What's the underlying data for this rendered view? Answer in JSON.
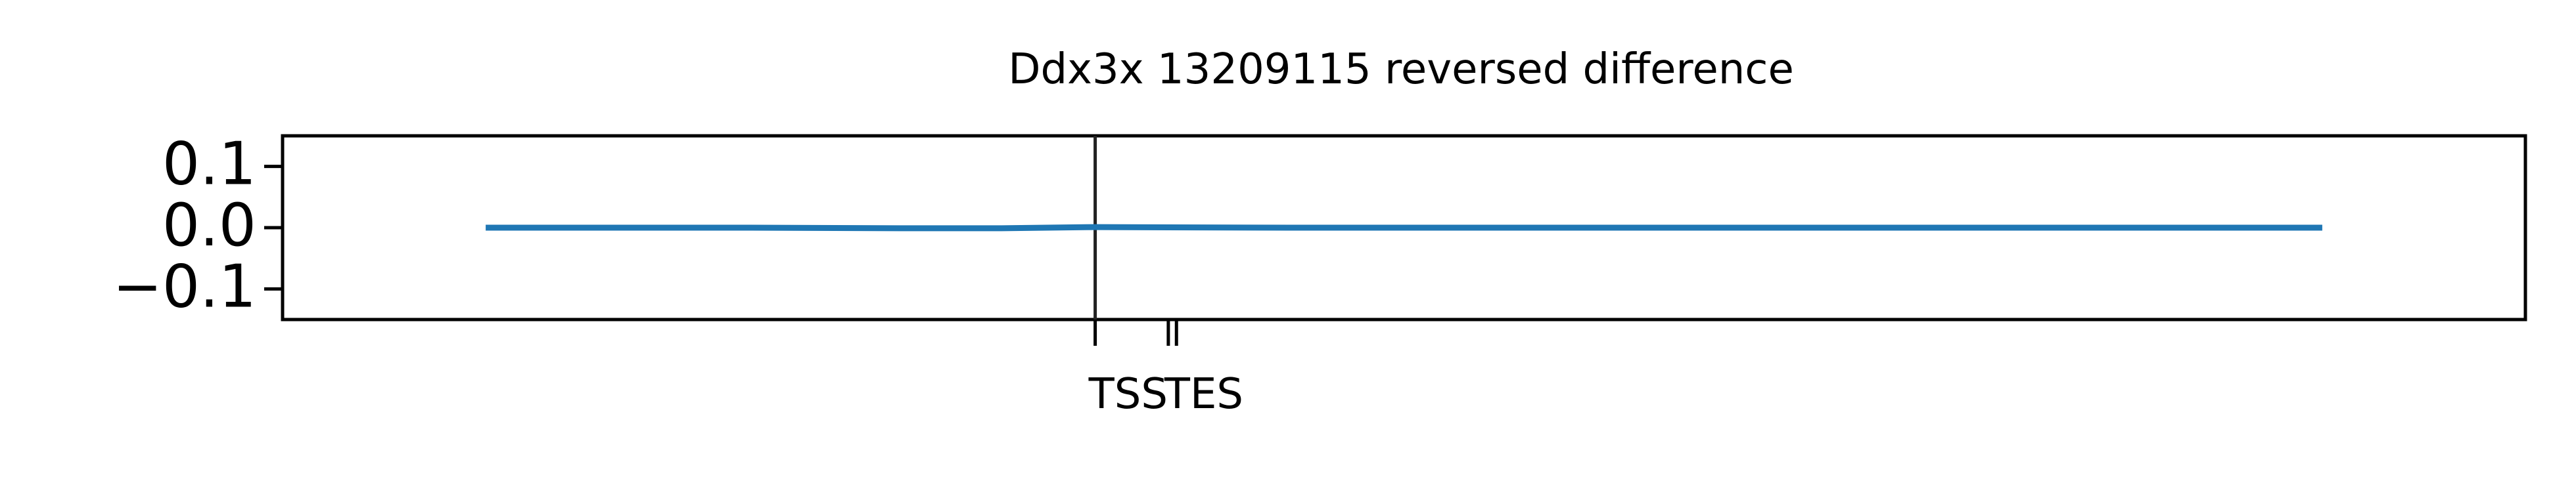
{
  "chart_data": {
    "type": "line",
    "title": "Ddx3x 13209115 reversed difference",
    "xlabel": "",
    "ylabel": "",
    "ylim": [
      -0.15,
      0.15
    ],
    "yticks": [
      {
        "value": 0.1,
        "label": "0.1"
      },
      {
        "value": 0.0,
        "label": "0.0"
      },
      {
        "value": -0.1,
        "label": "−0.1"
      }
    ],
    "xlim": [
      -100,
      176
    ],
    "xticks": [
      {
        "value": 0,
        "label": "TSS"
      },
      {
        "value": 9,
        "label": "TES"
      },
      {
        "value": 10,
        "label": ""
      }
    ],
    "markers": [
      0
    ],
    "grid": false,
    "series": [
      {
        "color": "#1f77b4",
        "x": [
          -75,
          -43,
          -24,
          -12,
          0,
          24,
          47,
          88,
          151
        ],
        "y": [
          0.0,
          0.0,
          -0.001,
          -0.001,
          0.001,
          0.0,
          0.0,
          0.0,
          0.0
        ]
      }
    ]
  }
}
